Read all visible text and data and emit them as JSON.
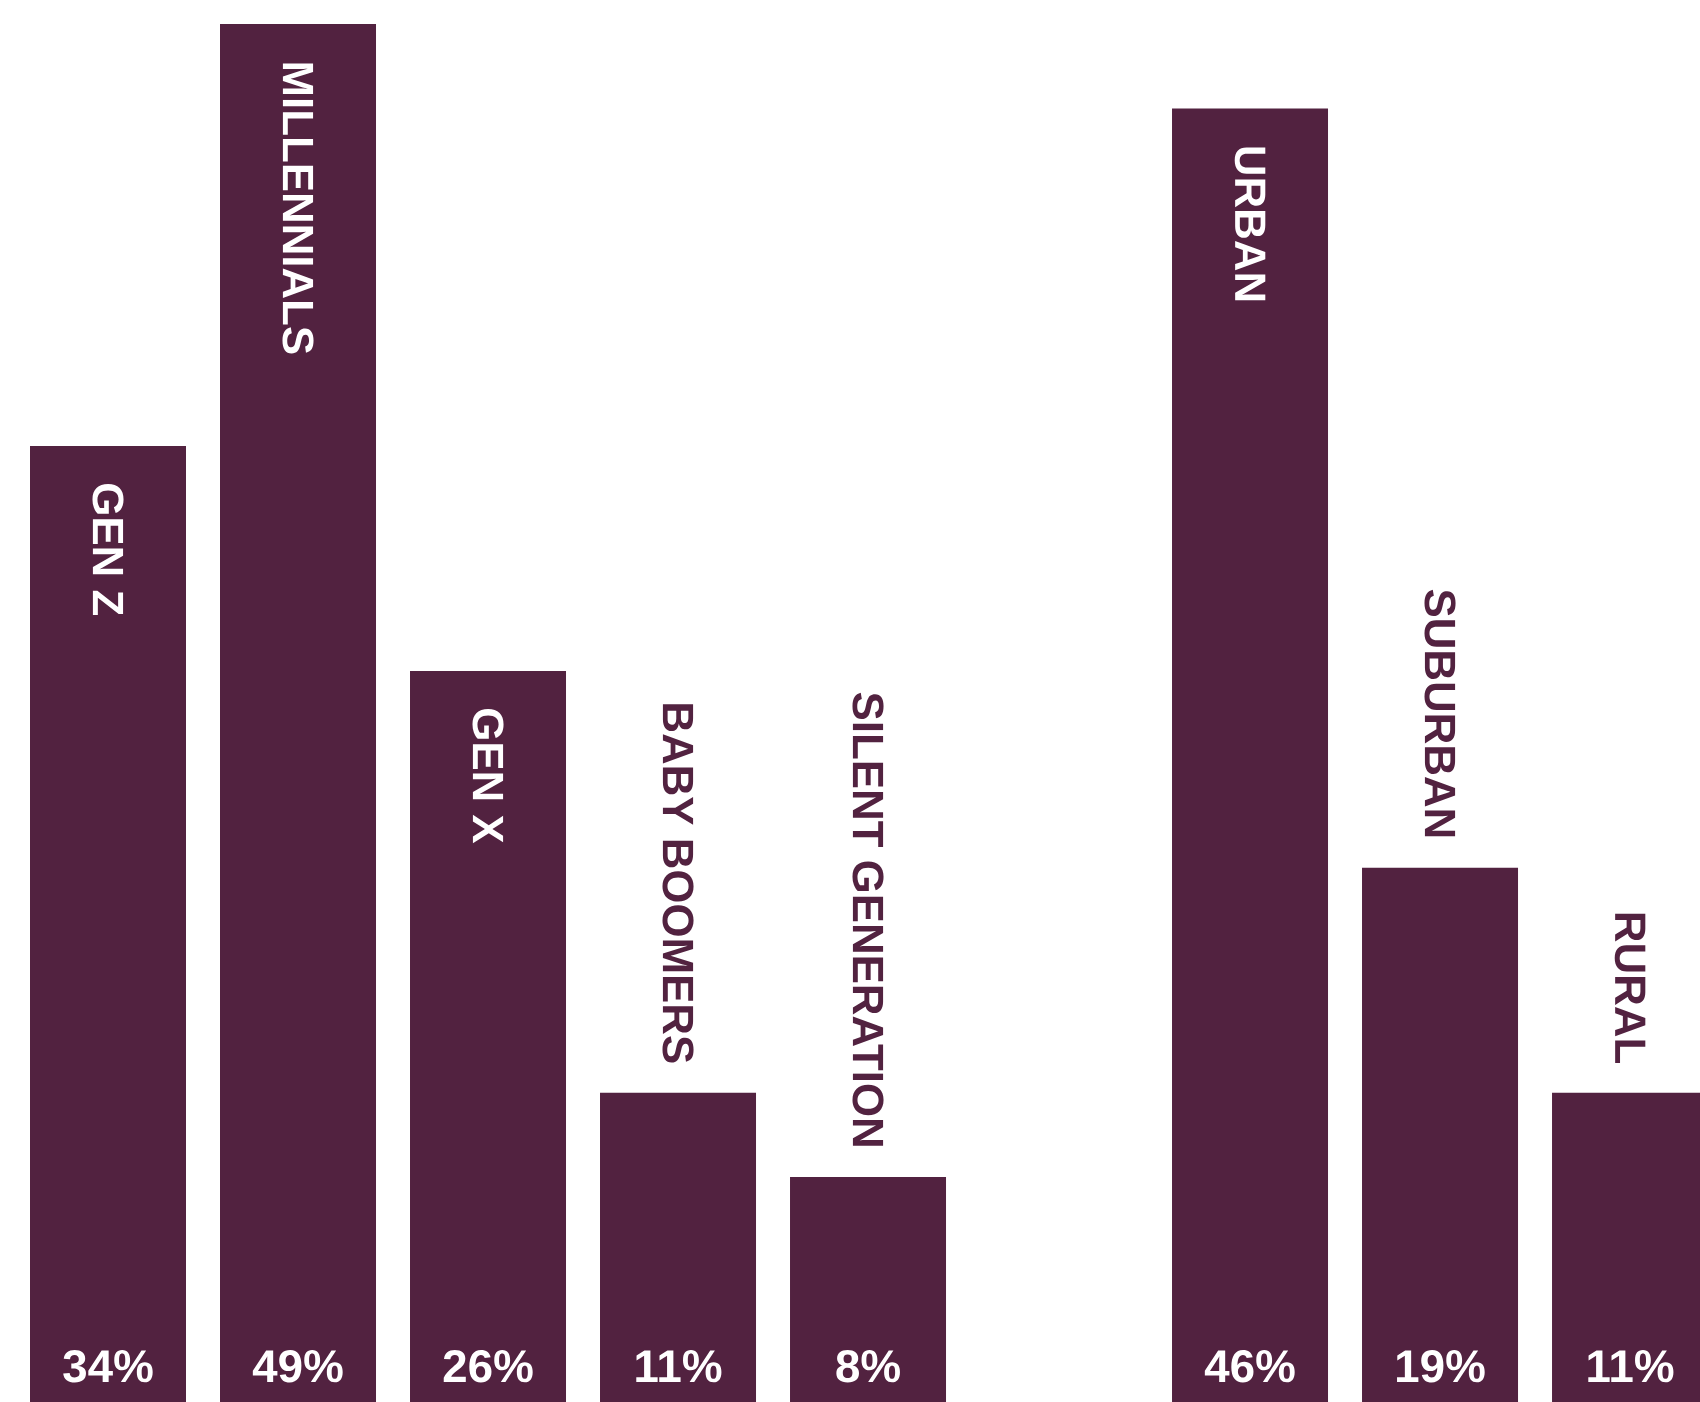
{
  "chart_data": [
    {
      "type": "bar",
      "categories": [
        "GEN Z",
        "MILLENNIALS",
        "GEN X",
        "BABY BOOMERS",
        "SILENT GENERATION"
      ],
      "values": [
        34,
        49,
        26,
        11,
        8
      ],
      "value_labels": [
        "34%",
        "49%",
        "26%",
        "11%",
        "8%"
      ],
      "color": "#522240"
    },
    {
      "type": "bar",
      "categories": [
        "URBAN",
        "SUBURBAN",
        "RURAL"
      ],
      "values": [
        46,
        19,
        11
      ],
      "value_labels": [
        "46%",
        "19%",
        "11%"
      ],
      "color": "#522240"
    }
  ]
}
